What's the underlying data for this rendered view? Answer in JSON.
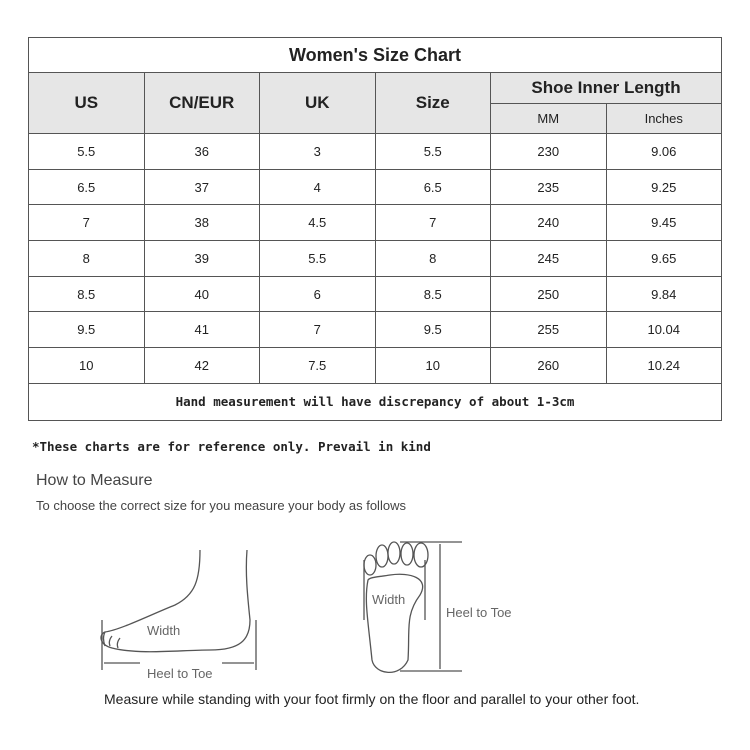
{
  "chart": {
    "title": "Women's Size Chart",
    "headers": [
      "US",
      "CN/EUR",
      "UK",
      "Size",
      "Shoe Inner Length"
    ],
    "subheaders": [
      "MM",
      "Inches"
    ],
    "rows": [
      [
        "5.5",
        "36",
        "3",
        "5.5",
        "230",
        "9.06"
      ],
      [
        "6.5",
        "37",
        "4",
        "6.5",
        "235",
        "9.25"
      ],
      [
        "7",
        "38",
        "4.5",
        "7",
        "240",
        "9.45"
      ],
      [
        "8",
        "39",
        "5.5",
        "8",
        "245",
        "9.65"
      ],
      [
        "8.5",
        "40",
        "6",
        "8.5",
        "250",
        "9.84"
      ],
      [
        "9.5",
        "41",
        "7",
        "9.5",
        "255",
        "10.04"
      ],
      [
        "10",
        "42",
        "7.5",
        "10",
        "260",
        "10.24"
      ]
    ],
    "note": "Hand measurement will have discrepancy of about 1-3cm"
  },
  "reference": "*These charts are for reference only. Prevail in kind",
  "measure": {
    "title": "How to Measure",
    "subtitle": "To choose the correct size for you measure your body as follows",
    "width_label": "Width",
    "length_label": "Heel to Toe",
    "instruction": "Measure while standing with your foot firmly on the floor and parallel to your other foot."
  }
}
